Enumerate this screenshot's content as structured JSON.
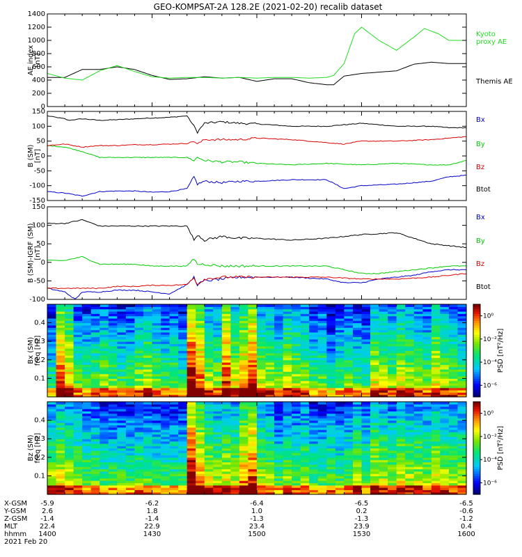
{
  "title": "GEO-KOMPSAT-2A 128.2E (2021-02-20) recalib dataset",
  "colors": {
    "black": "#000000",
    "red": "#dd0000",
    "green": "#00cc00",
    "blue": "#0000cc",
    "kyoto": "#22dd22"
  },
  "chart_data": [
    {
      "type": "line",
      "id": "ae",
      "ylabel": "AE index",
      "yunit": "[nT]",
      "ylim": [
        0,
        1400
      ],
      "yticks": [
        0,
        200,
        400,
        600,
        800,
        1000,
        1200,
        1400
      ],
      "xlim": [
        0,
        120
      ],
      "series": [
        {
          "name": "Themis AE",
          "color": "#000000",
          "x": [
            0,
            5,
            10,
            15,
            20,
            25,
            30,
            35,
            40,
            45,
            50,
            55,
            60,
            65,
            70,
            75,
            80,
            82,
            85,
            90,
            95,
            100,
            105,
            110,
            115,
            120
          ],
          "y": [
            440,
            440,
            560,
            560,
            600,
            560,
            470,
            410,
            420,
            450,
            430,
            440,
            380,
            420,
            420,
            360,
            330,
            330,
            460,
            500,
            520,
            540,
            640,
            670,
            650,
            650
          ]
        },
        {
          "name": "Kyoto proxy AE",
          "color": "#22dd22",
          "x": [
            0,
            5,
            10,
            15,
            20,
            25,
            30,
            35,
            40,
            45,
            50,
            55,
            60,
            65,
            70,
            75,
            80,
            82,
            85,
            88,
            90,
            95,
            100,
            105,
            108,
            112,
            115,
            120
          ],
          "y": [
            500,
            430,
            400,
            540,
            620,
            530,
            450,
            430,
            440,
            440,
            430,
            440,
            430,
            440,
            440,
            430,
            440,
            470,
            650,
            1100,
            1200,
            1000,
            850,
            1050,
            1180,
            1100,
            1000,
            1000
          ]
        }
      ],
      "labels": [
        {
          "text": "Kyoto",
          "color": "#22dd22"
        },
        {
          "text": "proxy AE",
          "color": "#22dd22"
        },
        {
          "text": "Themis AE",
          "color": "#000000"
        }
      ]
    },
    {
      "type": "line",
      "id": "bgsm",
      "ylabel": "B (SM)",
      "yunit": "[nT]",
      "ylim": [
        -150,
        150
      ],
      "yticks": [
        -150,
        -100,
        -50,
        0,
        50,
        100,
        150
      ],
      "xlim": [
        0,
        120
      ],
      "series": [
        {
          "name": "Btot",
          "color": "#000000",
          "x": [
            0,
            5,
            6,
            10,
            15,
            20,
            25,
            30,
            35,
            40,
            42,
            43,
            45,
            50,
            55,
            60,
            70,
            80,
            90,
            100,
            110,
            115,
            120
          ],
          "y": [
            135,
            125,
            120,
            125,
            120,
            122,
            125,
            128,
            130,
            135,
            100,
            80,
            110,
            115,
            110,
            108,
            100,
            100,
            110,
            100,
            100,
            95,
            95
          ]
        },
        {
          "name": "Bx",
          "color": "#0000cc",
          "x": [
            0,
            5,
            10,
            15,
            20,
            25,
            30,
            35,
            40,
            42,
            43,
            45,
            50,
            55,
            60,
            70,
            80,
            85,
            90,
            100,
            110,
            115,
            120
          ],
          "y": [
            -120,
            -125,
            -135,
            -120,
            -118,
            -118,
            -122,
            -120,
            -110,
            -70,
            -95,
            -85,
            -90,
            -85,
            -85,
            -80,
            -80,
            -110,
            -100,
            -95,
            -85,
            -70,
            -65
          ]
        },
        {
          "name": "By",
          "color": "#00cc00",
          "x": [
            0,
            5,
            10,
            15,
            20,
            25,
            30,
            35,
            40,
            42,
            43,
            45,
            50,
            55,
            60,
            70,
            80,
            90,
            100,
            110,
            115,
            120
          ],
          "y": [
            35,
            30,
            15,
            -5,
            -5,
            -5,
            -5,
            -5,
            -5,
            -15,
            -5,
            -15,
            -20,
            -20,
            -25,
            -30,
            -25,
            -30,
            -25,
            -30,
            -30,
            -15
          ]
        },
        {
          "name": "Bz",
          "color": "#dd0000",
          "x": [
            0,
            5,
            10,
            15,
            20,
            25,
            30,
            35,
            40,
            42,
            43,
            45,
            50,
            55,
            60,
            70,
            80,
            85,
            90,
            100,
            110,
            115,
            120
          ],
          "y": [
            35,
            40,
            30,
            35,
            35,
            38,
            38,
            40,
            42,
            50,
            40,
            55,
            55,
            55,
            60,
            55,
            45,
            40,
            50,
            50,
            55,
            60,
            65
          ]
        }
      ],
      "labels": [
        {
          "text": "Bx",
          "color": "#0000cc"
        },
        {
          "text": "By",
          "color": "#00cc00"
        },
        {
          "text": "Bz",
          "color": "#dd0000"
        },
        {
          "text": "Btot",
          "color": "#000000"
        }
      ]
    },
    {
      "type": "line",
      "id": "bigrf",
      "ylabel": "B (SM)-IGRF (SM)",
      "yunit": "[nT]",
      "ylim": [
        -100,
        150
      ],
      "yticks": [
        -100,
        -50,
        0,
        50,
        100,
        150
      ],
      "xlim": [
        0,
        120
      ],
      "series": [
        {
          "name": "Btot",
          "color": "#000000",
          "x": [
            0,
            5,
            10,
            15,
            20,
            25,
            30,
            35,
            40,
            42,
            43,
            45,
            50,
            55,
            60,
            70,
            80,
            90,
            100,
            105,
            110,
            115,
            120
          ],
          "y": [
            105,
            105,
            115,
            98,
            98,
            98,
            98,
            98,
            98,
            60,
            75,
            60,
            70,
            65,
            65,
            60,
            65,
            75,
            80,
            65,
            50,
            45,
            40
          ]
        },
        {
          "name": "Bx",
          "color": "#0000cc",
          "x": [
            0,
            5,
            8,
            10,
            15,
            20,
            25,
            30,
            35,
            40,
            42,
            43,
            45,
            50,
            55,
            60,
            70,
            80,
            85,
            90,
            95,
            100,
            105,
            110,
            115,
            120
          ],
          "y": [
            -70,
            -80,
            -100,
            -80,
            -80,
            -75,
            -75,
            -80,
            -85,
            -60,
            -40,
            -60,
            -50,
            -45,
            -40,
            -40,
            -40,
            -45,
            -55,
            -55,
            -45,
            -40,
            -35,
            -25,
            -20,
            -20
          ]
        },
        {
          "name": "By",
          "color": "#00cc00",
          "x": [
            0,
            5,
            10,
            15,
            20,
            25,
            30,
            35,
            40,
            42,
            43,
            45,
            50,
            55,
            60,
            70,
            80,
            90,
            95,
            100,
            110,
            115,
            120
          ],
          "y": [
            5,
            5,
            15,
            -5,
            -5,
            -5,
            -10,
            -10,
            -10,
            10,
            -5,
            -5,
            -10,
            -10,
            -10,
            -10,
            -10,
            -30,
            -30,
            -25,
            -15,
            -10,
            -10
          ]
        },
        {
          "name": "Bz",
          "color": "#dd0000",
          "x": [
            0,
            5,
            10,
            15,
            20,
            25,
            30,
            35,
            40,
            42,
            43,
            45,
            50,
            55,
            60,
            70,
            80,
            90,
            100,
            110,
            115,
            120
          ],
          "y": [
            -70,
            -70,
            -70,
            -70,
            -65,
            -65,
            -62,
            -62,
            -60,
            -40,
            -60,
            -45,
            -40,
            -40,
            -40,
            -40,
            -40,
            -45,
            -45,
            -40,
            -35,
            -30
          ]
        }
      ],
      "labels": [
        {
          "text": "Bx",
          "color": "#0000cc"
        },
        {
          "text": "By",
          "color": "#00cc00"
        },
        {
          "text": "Bz",
          "color": "#dd0000"
        },
        {
          "text": "Btot",
          "color": "#000000"
        }
      ]
    },
    {
      "type": "heatmap",
      "id": "specx",
      "ylabel": "Bx (SM)",
      "yunit": "freq [Hz]",
      "ylim": [
        0,
        0.5
      ],
      "yticks": [
        0.1,
        0.2,
        0.3,
        0.4
      ],
      "xlim": [
        0,
        120
      ],
      "colorbar": {
        "label": "PSD [nT²/Hz]",
        "ticks": [
          "10⁰",
          "10⁻²",
          "10⁻⁴",
          "10⁻⁶"
        ],
        "exponents": [
          0,
          -2,
          -4,
          -6
        ],
        "range": [
          -7,
          1
        ]
      },
      "activity": [
        0.35,
        0.85,
        0.7,
        0.45,
        0.4,
        0.45,
        0.5,
        0.45,
        0.4,
        0.4,
        0.5,
        0.55,
        0.45,
        0.4,
        0.45,
        0.35,
        0.95,
        0.8,
        0.55,
        0.5,
        0.85,
        0.6,
        0.75,
        0.9,
        0.55,
        0.55,
        0.45,
        0.6,
        0.55,
        0.5,
        0.4,
        0.45,
        0.3,
        0.4,
        0.45,
        0.4,
        0.35,
        0.6,
        0.55,
        0.5,
        0.6,
        0.55,
        0.5,
        0.45,
        0.65,
        0.55,
        0.5,
        0.45
      ]
    },
    {
      "type": "heatmap",
      "id": "specz",
      "ylabel": "Bz (SM)",
      "yunit": "freq [Hz]",
      "ylim": [
        0,
        0.5
      ],
      "yticks": [
        0.1,
        0.2,
        0.3,
        0.4
      ],
      "xlim": [
        0,
        120
      ],
      "colorbar": {
        "label": "PSD [nT²/Hz]",
        "ticks": [
          "10⁰",
          "10⁻²",
          "10⁻⁴",
          "10⁻⁶"
        ],
        "exponents": [
          0,
          -2,
          -4,
          -6
        ],
        "range": [
          -7,
          1
        ]
      },
      "activity": [
        0.55,
        0.6,
        0.55,
        0.5,
        0.45,
        0.45,
        0.4,
        0.4,
        0.4,
        0.4,
        0.45,
        0.45,
        0.4,
        0.4,
        0.4,
        0.4,
        0.95,
        0.75,
        0.6,
        0.55,
        0.6,
        0.55,
        0.75,
        0.85,
        0.55,
        0.5,
        0.4,
        0.5,
        0.45,
        0.5,
        0.4,
        0.4,
        0.45,
        0.4,
        0.45,
        0.55,
        0.45,
        0.6,
        0.55,
        0.5,
        0.6,
        0.55,
        0.55,
        0.5,
        0.6,
        0.55,
        0.5,
        0.5
      ]
    }
  ],
  "ephemeris": {
    "row_labels": [
      "X-GSM",
      "Y-GSM",
      "Z-GSM",
      "MLT",
      "hhmm",
      "2021 Feb 20"
    ],
    "columns": [
      [
        "-5.9",
        "2.6",
        "-1.4",
        "22.4",
        "1400"
      ],
      [
        "-6.2",
        "1.8",
        "-1.4",
        "22.9",
        "1430"
      ],
      [
        "-6.4",
        "1.0",
        "-1.3",
        "23.4",
        "1500"
      ],
      [
        "-6.5",
        "0.2",
        "-1.3",
        "23.9",
        "1530"
      ],
      [
        "-6.5",
        "-0.6",
        "-1.2",
        "0.4",
        "1600"
      ]
    ]
  }
}
